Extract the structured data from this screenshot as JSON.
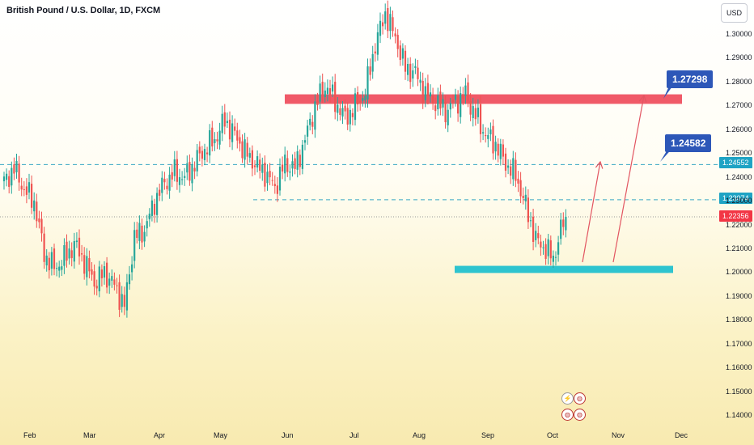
{
  "header": {
    "title": "British Pound / U.S. Dollar, 1D, FXCM",
    "currency_label": "USD"
  },
  "colors": {
    "bull": "#26a69a",
    "bear": "#ef5350",
    "resistance_zone": "#f05a68",
    "support_zone": "#2ec4cf",
    "dashed": "#3aa8c4",
    "callout": "#2d57b8",
    "price_badge": "#f23645",
    "level_badge": "#1fa3c4",
    "arrow": "#e25561"
  },
  "annotations": {
    "callout_upper": "1.27298",
    "callout_lower": "1.24582",
    "badge_level_1": "1.24552",
    "badge_level_2": "1.23074",
    "badge_price": "1.22356"
  },
  "icons": [
    "lightning-event-icon",
    "us-flag-event-icon",
    "uk-flag-event-icon",
    "us-flag-event-icon-2"
  ],
  "chart_data": {
    "type": "candlestick",
    "title": "British Pound / U.S. Dollar, 1D, FXCM",
    "ylabel": "USD",
    "ylim": [
      1.135,
      1.31
    ],
    "y_ticks": [
      "1.30000",
      "1.29000",
      "1.28000",
      "1.27000",
      "1.26000",
      "1.25000",
      "1.24000",
      "1.23000",
      "1.22000",
      "1.21000",
      "1.20000",
      "1.19000",
      "1.18000",
      "1.17000",
      "1.16000",
      "1.15000",
      "1.14000"
    ],
    "x_ticks": [
      "Feb",
      "Mar",
      "Apr",
      "May",
      "Jun",
      "Jul",
      "Aug",
      "Sep",
      "Oct",
      "Nov",
      "Dec"
    ],
    "anchors": [
      {
        "i": 0,
        "c": 1.238
      },
      {
        "i": 4,
        "c": 1.244
      },
      {
        "i": 8,
        "c": 1.235
      },
      {
        "i": 12,
        "c": 1.23
      },
      {
        "i": 16,
        "c": 1.208
      },
      {
        "i": 20,
        "c": 1.202
      },
      {
        "i": 24,
        "c": 1.206
      },
      {
        "i": 28,
        "c": 1.212
      },
      {
        "i": 32,
        "c": 1.205
      },
      {
        "i": 36,
        "c": 1.196
      },
      {
        "i": 40,
        "c": 1.2
      },
      {
        "i": 44,
        "c": 1.195
      },
      {
        "i": 48,
        "c": 1.186
      },
      {
        "i": 52,
        "c": 1.215
      },
      {
        "i": 56,
        "c": 1.218
      },
      {
        "i": 60,
        "c": 1.23
      },
      {
        "i": 64,
        "c": 1.238
      },
      {
        "i": 68,
        "c": 1.242
      },
      {
        "i": 72,
        "c": 1.24
      },
      {
        "i": 76,
        "c": 1.246
      },
      {
        "i": 80,
        "c": 1.252
      },
      {
        "i": 84,
        "c": 1.256
      },
      {
        "i": 88,
        "c": 1.264
      },
      {
        "i": 92,
        "c": 1.258
      },
      {
        "i": 96,
        "c": 1.251
      },
      {
        "i": 100,
        "c": 1.246
      },
      {
        "i": 104,
        "c": 1.242
      },
      {
        "i": 108,
        "c": 1.236
      },
      {
        "i": 112,
        "c": 1.246
      },
      {
        "i": 116,
        "c": 1.244
      },
      {
        "i": 120,
        "c": 1.256
      },
      {
        "i": 124,
        "c": 1.27
      },
      {
        "i": 128,
        "c": 1.279
      },
      {
        "i": 132,
        "c": 1.272
      },
      {
        "i": 136,
        "c": 1.265
      },
      {
        "i": 140,
        "c": 1.27
      },
      {
        "i": 144,
        "c": 1.276
      },
      {
        "i": 148,
        "c": 1.296
      },
      {
        "i": 152,
        "c": 1.309
      },
      {
        "i": 156,
        "c": 1.299
      },
      {
        "i": 160,
        "c": 1.286
      },
      {
        "i": 164,
        "c": 1.284
      },
      {
        "i": 168,
        "c": 1.275
      },
      {
        "i": 172,
        "c": 1.272
      },
      {
        "i": 176,
        "c": 1.268
      },
      {
        "i": 180,
        "c": 1.272
      },
      {
        "i": 184,
        "c": 1.275
      },
      {
        "i": 188,
        "c": 1.266
      },
      {
        "i": 192,
        "c": 1.258
      },
      {
        "i": 196,
        "c": 1.254
      },
      {
        "i": 200,
        "c": 1.246
      },
      {
        "i": 204,
        "c": 1.241
      },
      {
        "i": 208,
        "c": 1.228
      },
      {
        "i": 212,
        "c": 1.214
      },
      {
        "i": 216,
        "c": 1.21
      },
      {
        "i": 219,
        "c": 1.206
      },
      {
        "i": 222,
        "c": 1.218
      },
      {
        "i": 224,
        "c": 1.2236
      }
    ],
    "bar_count": 225,
    "levels": [
      {
        "name": "resistance-zone",
        "from": 1.271,
        "to": 1.275
      },
      {
        "name": "support-zone",
        "from": 1.2,
        "to": 1.203
      },
      {
        "name": "dashed-level",
        "value": 1.24552
      },
      {
        "name": "dashed-level",
        "value": 1.23074
      },
      {
        "name": "last-price-dotted",
        "value": 1.22356
      }
    ]
  }
}
